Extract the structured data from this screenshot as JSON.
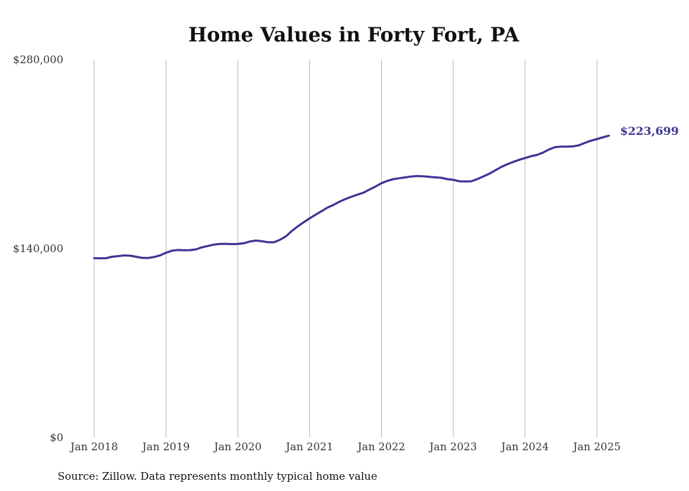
{
  "chart_data": {
    "type": "line",
    "title": "Home Values in Forty Fort, PA",
    "xlabel": "",
    "ylabel": "",
    "ylim": [
      0,
      280000
    ],
    "xlim": [
      "2018-01",
      "2025-04"
    ],
    "y_ticks": [
      {
        "value": 0,
        "label": "$0"
      },
      {
        "value": 140000,
        "label": "$140,000"
      },
      {
        "value": 280000,
        "label": "$280,000"
      }
    ],
    "x_ticks": [
      {
        "value": "2018-01",
        "label": "Jan 2018"
      },
      {
        "value": "2019-01",
        "label": "Jan 2019"
      },
      {
        "value": "2020-01",
        "label": "Jan 2020"
      },
      {
        "value": "2021-01",
        "label": "Jan 2021"
      },
      {
        "value": "2022-01",
        "label": "Jan 2022"
      },
      {
        "value": "2023-01",
        "label": "Jan 2023"
      },
      {
        "value": "2024-01",
        "label": "Jan 2024"
      },
      {
        "value": "2025-01",
        "label": "Jan 2025"
      }
    ],
    "grid": {
      "vertical": true,
      "horizontal": false
    },
    "legend": "none",
    "series": [
      {
        "color": "#3d3594",
        "end_label": "$223,699",
        "points": [
          [
            "2018-01",
            133000
          ],
          [
            "2018-02",
            132800
          ],
          [
            "2018-03",
            133000
          ],
          [
            "2018-04",
            134000
          ],
          [
            "2018-05",
            134500
          ],
          [
            "2018-06",
            135000
          ],
          [
            "2018-07",
            134800
          ],
          [
            "2018-08",
            134000
          ],
          [
            "2018-09",
            133200
          ],
          [
            "2018-10",
            133100
          ],
          [
            "2018-11",
            133800
          ],
          [
            "2018-12",
            135000
          ],
          [
            "2019-01",
            137000
          ],
          [
            "2019-02",
            138500
          ],
          [
            "2019-03",
            139000
          ],
          [
            "2019-04",
            138800
          ],
          [
            "2019-05",
            138900
          ],
          [
            "2019-06",
            139500
          ],
          [
            "2019-07",
            141000
          ],
          [
            "2019-08",
            142000
          ],
          [
            "2019-09",
            143000
          ],
          [
            "2019-10",
            143500
          ],
          [
            "2019-11",
            143600
          ],
          [
            "2019-12",
            143400
          ],
          [
            "2020-01",
            143500
          ],
          [
            "2020-02",
            144000
          ],
          [
            "2020-03",
            145300
          ],
          [
            "2020-04",
            146000
          ],
          [
            "2020-05",
            145500
          ],
          [
            "2020-06",
            144800
          ],
          [
            "2020-07",
            144700
          ],
          [
            "2020-08",
            146500
          ],
          [
            "2020-09",
            149000
          ],
          [
            "2020-10",
            153000
          ],
          [
            "2020-11",
            156500
          ],
          [
            "2020-12",
            159500
          ],
          [
            "2021-01",
            162500
          ],
          [
            "2021-02",
            165200
          ],
          [
            "2021-03",
            167800
          ],
          [
            "2021-04",
            170500
          ],
          [
            "2021-05",
            172500
          ],
          [
            "2021-06",
            174800
          ],
          [
            "2021-07",
            176800
          ],
          [
            "2021-08",
            178500
          ],
          [
            "2021-09",
            180000
          ],
          [
            "2021-10",
            181500
          ],
          [
            "2021-11",
            183800
          ],
          [
            "2021-12",
            186000
          ],
          [
            "2022-01",
            188500
          ],
          [
            "2022-02",
            190300
          ],
          [
            "2022-03",
            191500
          ],
          [
            "2022-04",
            192200
          ],
          [
            "2022-05",
            192800
          ],
          [
            "2022-06",
            193500
          ],
          [
            "2022-07",
            193800
          ],
          [
            "2022-08",
            193600
          ],
          [
            "2022-09",
            193200
          ],
          [
            "2022-10",
            192800
          ],
          [
            "2022-11",
            192500
          ],
          [
            "2022-12",
            191500
          ],
          [
            "2023-01",
            191000
          ],
          [
            "2023-02",
            189900
          ],
          [
            "2023-03",
            189800
          ],
          [
            "2023-04",
            189900
          ],
          [
            "2023-05",
            191500
          ],
          [
            "2023-06",
            193500
          ],
          [
            "2023-07",
            195500
          ],
          [
            "2023-08",
            198000
          ],
          [
            "2023-09",
            200500
          ],
          [
            "2023-10",
            202500
          ],
          [
            "2023-11",
            204200
          ],
          [
            "2023-12",
            205800
          ],
          [
            "2024-01",
            207200
          ],
          [
            "2024-02",
            208500
          ],
          [
            "2024-03",
            209500
          ],
          [
            "2024-04",
            211200
          ],
          [
            "2024-05",
            213500
          ],
          [
            "2024-06",
            215200
          ],
          [
            "2024-07",
            215600
          ],
          [
            "2024-08",
            215600
          ],
          [
            "2024-09",
            215800
          ],
          [
            "2024-10",
            216600
          ],
          [
            "2024-11",
            218400
          ],
          [
            "2024-12",
            220000
          ],
          [
            "2025-01",
            221200
          ],
          [
            "2025-02",
            222500
          ],
          [
            "2025-03",
            223699
          ]
        ]
      }
    ]
  },
  "source_note": "Source: Zillow. Data represents monthly typical home value"
}
